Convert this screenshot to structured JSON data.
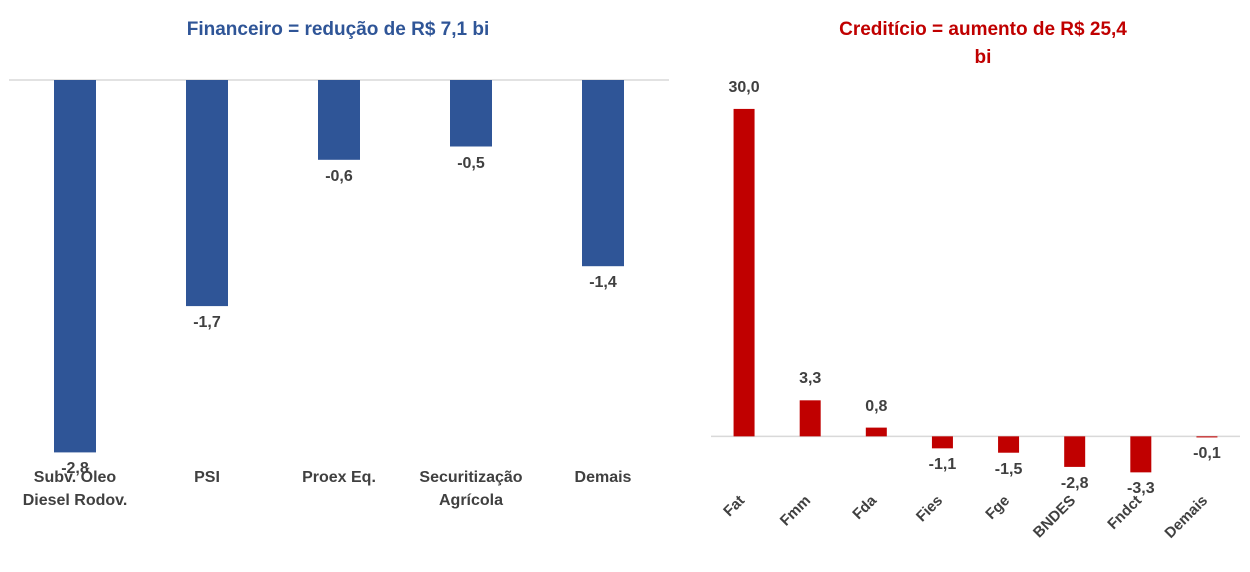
{
  "chart_data": [
    {
      "type": "bar",
      "title": "Financeiro = redução de R$ 7,1 bi",
      "color": "#2f5597",
      "categories": [
        "Subv. Óleo Diesel Rodov.",
        "PSI",
        "Proex Eq.",
        "Securitização Agrícola",
        "Demais"
      ],
      "values": [
        -2.8,
        -1.7,
        -0.6,
        -0.5,
        -1.4
      ],
      "value_labels": [
        "-2,8",
        "-1,7",
        "-0,6",
        "-0,5",
        "-1,4"
      ],
      "ylim": [
        -3,
        0
      ]
    },
    {
      "type": "bar",
      "title": "Creditício = aumento de R$ 25,4 bi",
      "color": "#c00000",
      "categories": [
        "Fat",
        "Fmm",
        "Fda",
        "Fies",
        "Fge",
        "BNDES",
        "Fndct",
        "Demais"
      ],
      "values": [
        30.0,
        3.3,
        0.8,
        -1.1,
        -1.5,
        -2.8,
        -3.3,
        -0.1
      ],
      "value_labels": [
        "30,0",
        "3,3",
        "0,8",
        "-1,1",
        "-1,5",
        "-2,8",
        "-3,3",
        "-0,1"
      ],
      "ylim": [
        -4,
        31
      ]
    }
  ]
}
